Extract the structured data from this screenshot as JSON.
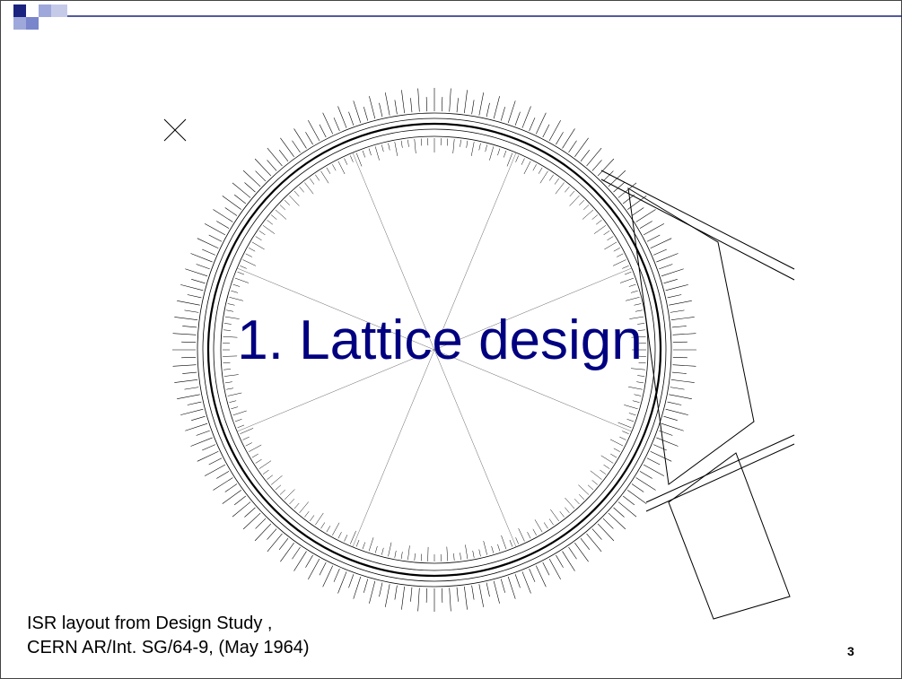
{
  "slide": {
    "title": "1. Lattice design",
    "caption": [
      "ISR layout from Design Study ,",
      "CERN AR/Int. SG/64-9, (May 1964)"
    ],
    "page_number": "3"
  }
}
